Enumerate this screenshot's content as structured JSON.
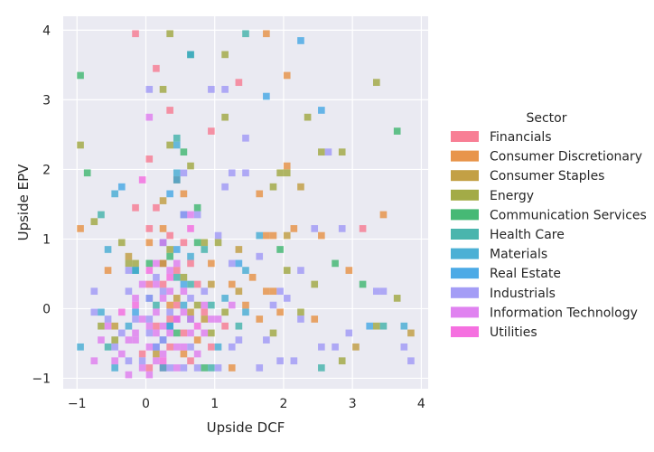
{
  "chart_data": {
    "type": "heatmap",
    "subtype": "2d-histogram",
    "xlabel": "Upside DCF",
    "ylabel": "Upside EPV",
    "xlim": [
      -1.2,
      4.1
    ],
    "ylim": [
      -1.15,
      4.2
    ],
    "x_ticks": [
      -1,
      0,
      1,
      2,
      3,
      4
    ],
    "y_ticks": [
      -1,
      0,
      1,
      2,
      3,
      4
    ],
    "x_tick_labels": [
      "−1",
      "0",
      "1",
      "2",
      "3",
      "4"
    ],
    "y_tick_labels": [
      "−1",
      "0",
      "1",
      "2",
      "3",
      "4"
    ],
    "bin_width_x": 0.1,
    "bin_height_y": 0.1,
    "grid": true,
    "background": "#eaeaf2",
    "legend_title": "Sector",
    "legend_placement": "right",
    "series": [
      {
        "name": "Financials",
        "color": "#f77189",
        "cells": [
          [
            -0.2,
            3.9
          ],
          [
            0.1,
            3.4
          ],
          [
            0.3,
            2.8
          ],
          [
            0.0,
            2.1
          ],
          [
            0.9,
            2.5
          ],
          [
            -0.2,
            1.4
          ],
          [
            0.1,
            1.4
          ],
          [
            0.0,
            1.1
          ],
          [
            0.3,
            1.0
          ],
          [
            0.6,
            0.6
          ],
          [
            0.2,
            0.3
          ],
          [
            0.4,
            0.0
          ],
          [
            0.1,
            -0.3
          ],
          [
            0.3,
            -0.6
          ],
          [
            0.0,
            -0.9
          ],
          [
            0.5,
            -0.4
          ],
          [
            0.2,
            0.6
          ],
          [
            0.8,
            -0.1
          ],
          [
            1.3,
            3.2
          ],
          [
            0.5,
            0.9
          ],
          [
            0.0,
            0.3
          ],
          [
            -0.1,
            -0.7
          ],
          [
            0.3,
            -0.2
          ],
          [
            0.6,
            -0.8
          ],
          [
            3.1,
            1.1
          ],
          [
            1.1,
            -0.3
          ],
          [
            0.4,
            0.5
          ],
          [
            0.2,
            -0.9
          ],
          [
            0.7,
            0.3
          ],
          [
            0.9,
            -0.6
          ]
        ]
      },
      {
        "name": "Consumer Discretionary",
        "color": "#e58937",
        "cells": [
          [
            1.7,
            3.9
          ],
          [
            2.0,
            3.3
          ],
          [
            2.0,
            2.0
          ],
          [
            1.6,
            1.6
          ],
          [
            -1.0,
            1.1
          ],
          [
            -0.6,
            0.5
          ],
          [
            0.2,
            1.1
          ],
          [
            0.5,
            1.6
          ],
          [
            1.7,
            1.0
          ],
          [
            1.8,
            1.0
          ],
          [
            2.1,
            1.1
          ],
          [
            2.5,
            1.0
          ],
          [
            3.4,
            1.3
          ],
          [
            2.9,
            0.5
          ],
          [
            1.7,
            0.2
          ],
          [
            1.8,
            0.2
          ],
          [
            1.5,
            0.4
          ],
          [
            1.4,
            0.0
          ],
          [
            1.9,
            -0.1
          ],
          [
            1.6,
            -0.2
          ],
          [
            0.3,
            0.0
          ],
          [
            0.7,
            -0.5
          ],
          [
            1.2,
            -0.9
          ],
          [
            2.4,
            -0.2
          ],
          [
            0.9,
            0.6
          ],
          [
            1.2,
            0.3
          ],
          [
            0.0,
            0.9
          ],
          [
            0.5,
            -0.7
          ]
        ]
      },
      {
        "name": "Consumer Staples",
        "color": "#bc9631",
        "cells": [
          [
            0.4,
            1.8
          ],
          [
            0.2,
            1.5
          ],
          [
            2.2,
            1.7
          ],
          [
            1.3,
            0.8
          ],
          [
            2.0,
            1.0
          ],
          [
            -0.3,
            0.7
          ],
          [
            0.2,
            0.6
          ],
          [
            1.3,
            0.2
          ],
          [
            0.6,
            -0.1
          ],
          [
            0.8,
            -0.2
          ],
          [
            3.0,
            -0.6
          ],
          [
            3.8,
            -0.4
          ],
          [
            -0.5,
            -0.3
          ],
          [
            0.9,
            0.3
          ],
          [
            0.1,
            -0.7
          ],
          [
            0.4,
            0.1
          ]
        ]
      },
      {
        "name": "Energy",
        "color": "#99a233",
        "cells": [
          [
            0.3,
            3.9
          ],
          [
            1.1,
            3.6
          ],
          [
            0.2,
            3.1
          ],
          [
            1.1,
            2.7
          ],
          [
            2.3,
            2.7
          ],
          [
            -1.0,
            2.3
          ],
          [
            0.3,
            2.3
          ],
          [
            0.6,
            2.0
          ],
          [
            1.9,
            1.9
          ],
          [
            2.0,
            1.9
          ],
          [
            2.5,
            2.2
          ],
          [
            2.8,
            2.2
          ],
          [
            1.8,
            1.7
          ],
          [
            -0.8,
            1.2
          ],
          [
            -0.4,
            0.9
          ],
          [
            0.8,
            0.9
          ],
          [
            1.0,
            0.9
          ],
          [
            2.0,
            0.5
          ],
          [
            2.4,
            0.3
          ],
          [
            3.6,
            0.1
          ],
          [
            3.3,
            -0.3
          ],
          [
            -0.7,
            -0.3
          ],
          [
            -0.3,
            0.6
          ],
          [
            -0.2,
            0.6
          ],
          [
            0.5,
            0.4
          ],
          [
            0.9,
            -0.4
          ],
          [
            1.8,
            -0.4
          ],
          [
            2.8,
            -0.8
          ],
          [
            -0.5,
            -0.5
          ],
          [
            0.3,
            0.8
          ],
          [
            0.7,
            0.0
          ],
          [
            1.1,
            -0.1
          ],
          [
            2.2,
            -0.1
          ],
          [
            3.3,
            3.2
          ]
        ]
      },
      {
        "name": "Communication Services",
        "color": "#32b166",
        "cells": [
          [
            0.6,
            3.6
          ],
          [
            -1.0,
            3.3
          ],
          [
            0.5,
            2.2
          ],
          [
            -0.9,
            1.9
          ],
          [
            0.7,
            1.4
          ],
          [
            0.7,
            0.9
          ],
          [
            0.3,
            0.7
          ],
          [
            1.9,
            0.8
          ],
          [
            2.7,
            0.6
          ],
          [
            3.1,
            0.3
          ],
          [
            3.6,
            2.5
          ],
          [
            0.0,
            0.6
          ],
          [
            0.8,
            -0.9
          ],
          [
            0.4,
            -0.4
          ]
        ]
      },
      {
        "name": "Health Care",
        "color": "#36ada4",
        "cells": [
          [
            1.4,
            3.9
          ],
          [
            0.4,
            2.4
          ],
          [
            0.8,
            0.8
          ],
          [
            0.4,
            0.4
          ],
          [
            0.6,
            0.3
          ],
          [
            0.9,
            0.0
          ],
          [
            -0.2,
            0.5
          ],
          [
            -0.6,
            -0.6
          ],
          [
            2.5,
            -0.9
          ],
          [
            0.9,
            -0.9
          ],
          [
            0.1,
            0.0
          ],
          [
            0.3,
            -0.3
          ],
          [
            1.3,
            -0.3
          ],
          [
            3.4,
            -0.3
          ],
          [
            -0.7,
            1.3
          ]
        ]
      },
      {
        "name": "Materials",
        "color": "#39a7d0",
        "cells": [
          [
            0.6,
            3.6
          ],
          [
            0.4,
            2.3
          ],
          [
            0.4,
            1.9
          ],
          [
            -0.5,
            1.6
          ],
          [
            0.5,
            1.3
          ],
          [
            0.2,
            0.9
          ],
          [
            0.6,
            0.7
          ],
          [
            1.6,
            1.0
          ],
          [
            1.4,
            0.5
          ],
          [
            -0.2,
            0.5
          ],
          [
            -0.6,
            0.8
          ],
          [
            0.0,
            0.1
          ],
          [
            0.5,
            0.0
          ],
          [
            1.1,
            0.1
          ],
          [
            -0.7,
            -0.1
          ],
          [
            -1.0,
            -0.6
          ],
          [
            0.2,
            -0.5
          ],
          [
            0.6,
            -0.2
          ],
          [
            1.0,
            -0.6
          ],
          [
            -0.3,
            -0.3
          ],
          [
            3.7,
            -0.3
          ],
          [
            0.2,
            -0.9
          ],
          [
            -0.5,
            -0.9
          ],
          [
            1.4,
            -0.1
          ]
        ]
      },
      {
        "name": "Real Estate",
        "color": "#38a1e3",
        "cells": [
          [
            2.2,
            3.8
          ],
          [
            1.7,
            3.0
          ],
          [
            2.5,
            2.8
          ],
          [
            0.3,
            1.6
          ],
          [
            0.4,
            1.8
          ],
          [
            -0.4,
            1.7
          ],
          [
            0.4,
            0.8
          ],
          [
            1.3,
            0.6
          ],
          [
            0.5,
            0.3
          ],
          [
            0.1,
            -0.6
          ],
          [
            0.3,
            -0.3
          ],
          [
            3.2,
            -0.3
          ],
          [
            -0.2,
            -0.1
          ]
        ]
      },
      {
        "name": "Industrials",
        "color": "#9a92f5",
        "cells": [
          [
            0.0,
            3.1
          ],
          [
            0.9,
            3.1
          ],
          [
            1.1,
            3.1
          ],
          [
            1.4,
            2.4
          ],
          [
            0.5,
            1.9
          ],
          [
            1.2,
            1.9
          ],
          [
            1.4,
            1.9
          ],
          [
            2.6,
            2.2
          ],
          [
            0.5,
            1.3
          ],
          [
            0.7,
            1.3
          ],
          [
            1.1,
            1.7
          ],
          [
            2.4,
            1.1
          ],
          [
            2.8,
            1.1
          ],
          [
            1.0,
            1.0
          ],
          [
            1.2,
            0.6
          ],
          [
            1.6,
            0.7
          ],
          [
            2.2,
            0.5
          ],
          [
            3.3,
            0.2
          ],
          [
            3.4,
            0.2
          ],
          [
            2.0,
            0.1
          ],
          [
            0.0,
            0.1
          ],
          [
            -0.3,
            0.2
          ],
          [
            -0.8,
            0.2
          ],
          [
            -0.8,
            -0.1
          ],
          [
            -0.6,
            -0.2
          ],
          [
            -0.4,
            -0.4
          ],
          [
            -0.5,
            -0.6
          ],
          [
            -0.3,
            -0.8
          ],
          [
            -0.1,
            -0.8
          ],
          [
            0.1,
            -0.6
          ],
          [
            0.3,
            -0.9
          ],
          [
            0.5,
            -0.9
          ],
          [
            0.7,
            -0.9
          ],
          [
            1.0,
            -0.9
          ],
          [
            0.2,
            -0.5
          ],
          [
            0.4,
            -0.2
          ],
          [
            0.0,
            -0.2
          ],
          [
            0.2,
            0.2
          ],
          [
            0.6,
            0.1
          ],
          [
            0.8,
            0.2
          ],
          [
            1.3,
            -0.5
          ],
          [
            1.9,
            -0.8
          ],
          [
            2.1,
            -0.8
          ],
          [
            2.5,
            -0.6
          ],
          [
            2.7,
            -0.6
          ],
          [
            2.9,
            -0.4
          ],
          [
            3.8,
            -0.8
          ],
          [
            3.7,
            -0.6
          ],
          [
            1.8,
            0.0
          ],
          [
            1.9,
            0.2
          ],
          [
            2.2,
            -0.2
          ],
          [
            1.7,
            -0.5
          ],
          [
            -0.3,
            0.5
          ],
          [
            0.0,
            -0.4
          ],
          [
            0.6,
            -0.6
          ],
          [
            -0.2,
            -0.2
          ],
          [
            0.1,
            0.4
          ],
          [
            0.3,
            -0.1
          ],
          [
            1.2,
            -0.6
          ],
          [
            1.6,
            -0.9
          ]
        ]
      },
      {
        "name": "Information Technology",
        "color": "#dd74ee",
        "cells": [
          [
            0.0,
            2.7
          ],
          [
            0.1,
            0.3
          ],
          [
            0.2,
            0.1
          ],
          [
            0.3,
            0.2
          ],
          [
            0.0,
            -0.3
          ],
          [
            0.1,
            -0.1
          ],
          [
            0.2,
            -0.3
          ],
          [
            0.4,
            -0.6
          ],
          [
            0.0,
            -0.6
          ],
          [
            -0.2,
            -0.5
          ],
          [
            -0.4,
            -0.7
          ],
          [
            -0.3,
            -1.0
          ],
          [
            -0.8,
            -0.8
          ],
          [
            -0.6,
            -0.3
          ],
          [
            -0.2,
            0.1
          ],
          [
            0.5,
            0.2
          ],
          [
            0.6,
            -0.4
          ],
          [
            0.8,
            -0.4
          ],
          [
            0.7,
            -0.7
          ],
          [
            0.4,
            -0.9
          ],
          [
            0.0,
            -1.0
          ],
          [
            -0.1,
            -0.2
          ],
          [
            -0.2,
            -0.4
          ],
          [
            0.1,
            -0.8
          ],
          [
            0.3,
            -0.4
          ],
          [
            0.5,
            -0.1
          ],
          [
            -0.5,
            -0.8
          ],
          [
            -0.7,
            -0.5
          ],
          [
            0.9,
            -0.2
          ],
          [
            0.2,
            0.9
          ],
          [
            0.6,
            1.3
          ],
          [
            0.1,
            0.6
          ],
          [
            0.4,
            0.6
          ],
          [
            -0.1,
            0.3
          ],
          [
            0.3,
            0.5
          ],
          [
            -0.1,
            -0.9
          ],
          [
            0.6,
            -0.2
          ],
          [
            1.0,
            -0.2
          ],
          [
            0.8,
            0.0
          ],
          [
            1.2,
            0.0
          ],
          [
            -0.3,
            -0.5
          ],
          [
            0.1,
            -0.4
          ],
          [
            0.2,
            -0.7
          ],
          [
            0.5,
            -0.6
          ]
        ]
      },
      {
        "name": "Utilities",
        "color": "#f461dd",
        "cells": [
          [
            -0.1,
            1.8
          ],
          [
            0.6,
            1.1
          ],
          [
            0.3,
            0.4
          ],
          [
            0.0,
            0.5
          ],
          [
            -0.2,
            0.0
          ],
          [
            0.4,
            -0.2
          ],
          [
            0.2,
            -0.8
          ],
          [
            -0.4,
            -0.1
          ],
          [
            0.7,
            -0.3
          ]
        ]
      }
    ]
  }
}
